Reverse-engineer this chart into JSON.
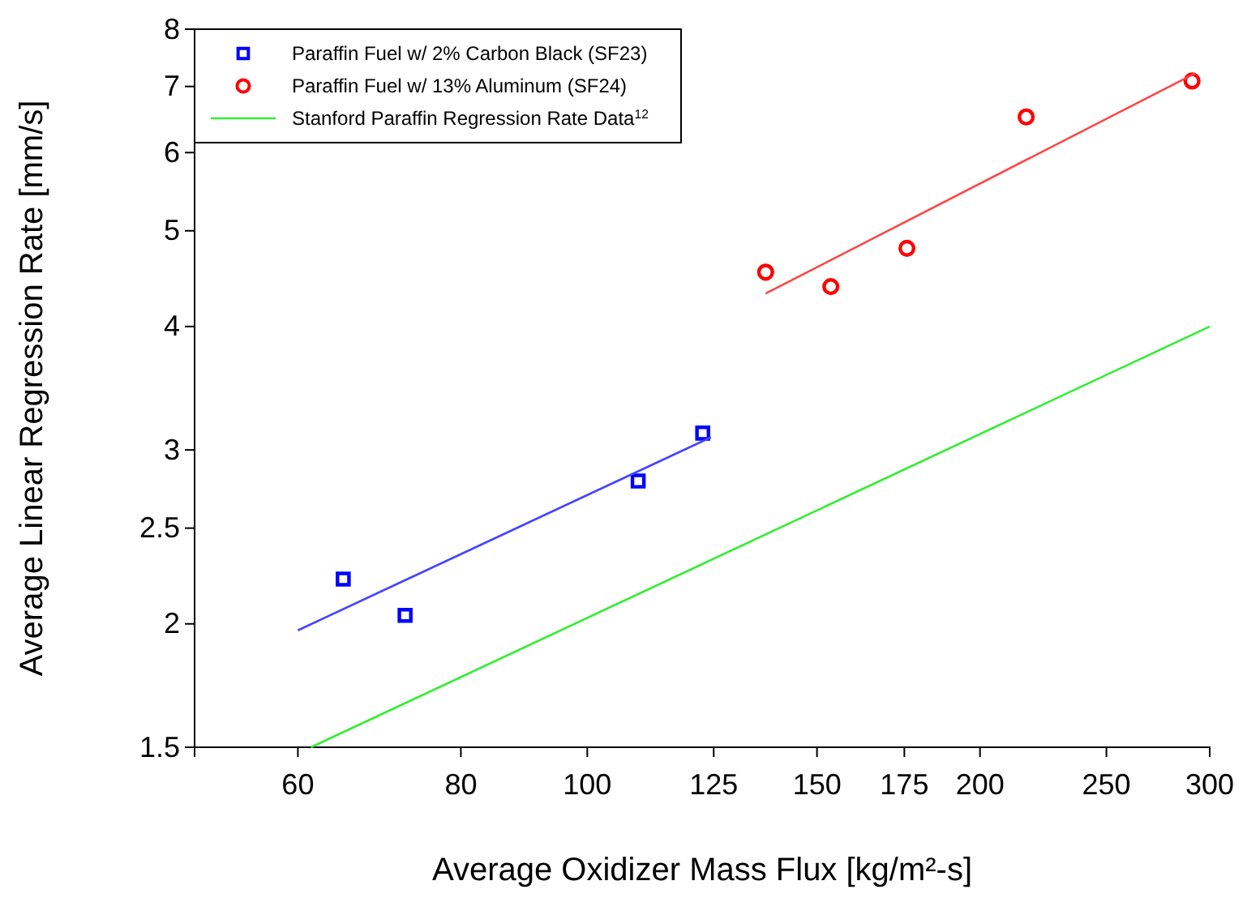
{
  "chart_data": {
    "type": "scatter",
    "xlabel": "Average Oxidizer Mass Flux [kg/m²-s]",
    "ylabel": "Average Linear Regression Rate [mm/s]",
    "log": "xy",
    "xlim": [
      50,
      300
    ],
    "ylim": [
      1.5,
      8
    ],
    "xticks": [
      60,
      80,
      100,
      125,
      150,
      175,
      200,
      250,
      300
    ],
    "yticks": [
      1.5,
      2,
      2.5,
      3,
      4,
      5,
      6,
      7,
      8
    ],
    "grid": false,
    "legend": "top left",
    "series": [
      {
        "name": "Paraffin Fuel w/ 2% Carbon Black (SF23)",
        "marker": "square",
        "color": "#0000ff",
        "x": [
          65.0,
          72.5,
          109.4,
          122.6
        ],
        "values": [
          2.22,
          2.04,
          2.79,
          3.12
        ]
      },
      {
        "name": "Paraffin Fuel w/ 13% Aluminum (SF24)",
        "marker": "circle",
        "color": "#ff0000",
        "x": [
          137,
          153.7,
          175.8,
          217,
          290.8
        ],
        "values": [
          4.54,
          4.39,
          4.8,
          6.52,
          7.09
        ]
      },
      {
        "name": "Stanford Paraffin Regression Rate Data$^{12}$",
        "type": "line",
        "color": "#33ee33",
        "x": [
          61.4,
          300
        ],
        "values": [
          1.5,
          4.0
        ]
      },
      {
        "type": "line",
        "color": "#4444ff",
        "x": [
          60,
          124.4
        ],
        "values": [
          1.97,
          3.09
        ]
      },
      {
        "type": "line",
        "color": "#ff4444",
        "x": [
          137,
          292.5
        ],
        "values": [
          4.32,
          7.22
        ]
      }
    ]
  }
}
